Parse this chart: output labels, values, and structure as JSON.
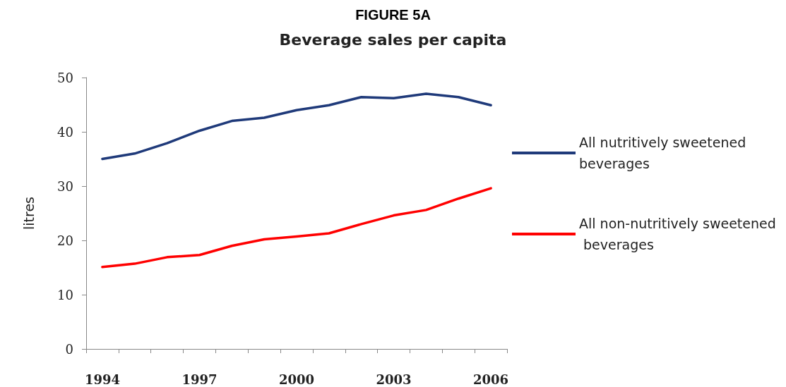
{
  "chart_data": {
    "type": "line",
    "title": "FIGURE 5A",
    "subtitle": "Beverage sales per capita",
    "ylabel": "litres",
    "categories": [
      "1994",
      null,
      null,
      "1997",
      null,
      null,
      "2000",
      null,
      null,
      "2003",
      null,
      null,
      "2006"
    ],
    "series": [
      {
        "name": "All nutritively sweetened beverages",
        "color": "#1f3a7a",
        "values": [
          35.0,
          36.0,
          37.9,
          40.2,
          42.0,
          42.6,
          44.0,
          44.9,
          46.4,
          46.2,
          47.0,
          46.4,
          44.9
        ]
      },
      {
        "name": "All non-nutritively sweetened beverages",
        "color": "#ff0000",
        "values": [
          15.1,
          15.7,
          16.9,
          17.3,
          19.0,
          20.2,
          20.7,
          21.3,
          23.0,
          24.6,
          25.6,
          27.7,
          29.6
        ]
      }
    ],
    "ylim": [
      0,
      50
    ],
    "yticks": [
      0,
      10,
      20,
      30,
      40,
      50
    ],
    "grid": false,
    "legend": "right",
    "marker": "none",
    "line_style": "solid"
  }
}
